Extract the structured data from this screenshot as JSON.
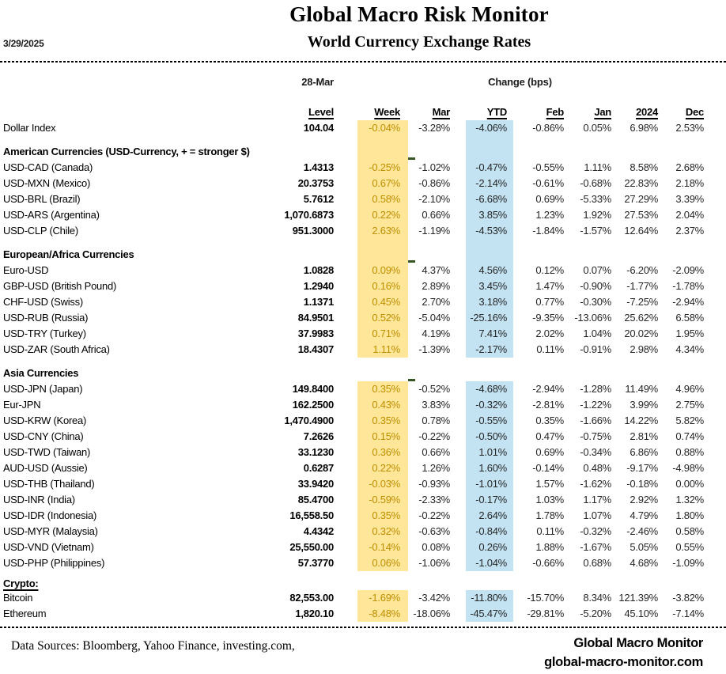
{
  "header": {
    "date": "3/29/2025",
    "title": "Global Macro Risk Monitor",
    "subtitle": "World Currency Exchange Rates"
  },
  "table": {
    "group_labels": {
      "level_group": "28-Mar",
      "change_group": "Change (bps)"
    },
    "columns": [
      "Level",
      "Week",
      "Mar",
      "YTD",
      "Feb",
      "Jan",
      "2024",
      "Dec"
    ],
    "rows": [
      {
        "t": "d",
        "label": "Dollar Index",
        "level": "104.04",
        "week": "-0.04%",
        "mar": "-3.28%",
        "ytd": "-4.06%",
        "feb": "-0.86%",
        "jan": "0.05%",
        "y2024": "6.98%",
        "dec": "2.53%",
        "hl": true
      },
      {
        "t": "sp",
        "h": 10,
        "hl": true
      },
      {
        "t": "s",
        "label": "American Currencies (USD-Currency, + = stronger $)",
        "hl": true
      },
      {
        "t": "d",
        "label": "USD-CAD (Canada)",
        "level": "1.4313",
        "week": "-0.25%",
        "mar": "-1.02%",
        "ytd": "-0.47%",
        "feb": "-0.55%",
        "jan": "1.11%",
        "y2024": "8.58%",
        "dec": "2.68%",
        "hl": true,
        "dash": true
      },
      {
        "t": "d",
        "label": "USD-MXN  (Mexico)",
        "level": "20.3753",
        "week": "0.67%",
        "mar": "-0.86%",
        "ytd": "-2.14%",
        "feb": "-0.61%",
        "jan": "-0.68%",
        "y2024": "22.83%",
        "dec": "2.18%",
        "hl": true
      },
      {
        "t": "d",
        "label": "USD-BRL (Brazil)",
        "level": "5.7612",
        "week": "0.58%",
        "mar": "-2.10%",
        "ytd": "-6.68%",
        "feb": "0.69%",
        "jan": "-5.33%",
        "y2024": "27.29%",
        "dec": "3.39%",
        "hl": true
      },
      {
        "t": "d",
        "label": "USD-ARS (Argentina)",
        "level": "1,070.6873",
        "week": "0.22%",
        "mar": "0.66%",
        "ytd": "3.85%",
        "feb": "1.23%",
        "jan": "1.92%",
        "y2024": "27.53%",
        "dec": "2.04%",
        "hl": true
      },
      {
        "t": "d",
        "label": "USD-CLP (Chile)",
        "level": "951.3000",
        "week": "2.63%",
        "mar": "-1.19%",
        "ytd": "-4.53%",
        "feb": "-1.84%",
        "jan": "-1.57%",
        "y2024": "12.64%",
        "dec": "2.37%",
        "hl": true
      },
      {
        "t": "sp",
        "h": 10,
        "hl": true
      },
      {
        "t": "s",
        "label": "European/Africa Currencies",
        "hl": true
      },
      {
        "t": "d",
        "label": "Euro-USD",
        "level": "1.0828",
        "week": "0.09%",
        "mar": "4.37%",
        "ytd": "4.56%",
        "feb": "0.12%",
        "jan": "0.07%",
        "y2024": "-6.20%",
        "dec": "-2.09%",
        "hl": true,
        "dash": true
      },
      {
        "t": "d",
        "label": "GBP-USD (British Pound)",
        "level": "1.2940",
        "week": "0.16%",
        "mar": "2.89%",
        "ytd": "3.45%",
        "feb": "1.47%",
        "jan": "-0.90%",
        "y2024": "-1.77%",
        "dec": "-1.78%",
        "hl": true
      },
      {
        "t": "d",
        "label": "CHF-USD (Swiss)",
        "level": "1.1371",
        "week": "0.45%",
        "mar": "2.70%",
        "ytd": "3.18%",
        "feb": "0.77%",
        "jan": "-0.30%",
        "y2024": "-7.25%",
        "dec": "-2.94%",
        "hl": true
      },
      {
        "t": "d",
        "label": "USD-RUB (Russia)",
        "level": "84.9501",
        "week": "0.52%",
        "mar": "-5.04%",
        "ytd": "-25.16%",
        "feb": "-9.35%",
        "jan": "-13.06%",
        "y2024": "25.62%",
        "dec": "6.58%",
        "hl": true
      },
      {
        "t": "d",
        "label": "USD-TRY (Turkey)",
        "level": "37.9983",
        "week": "0.71%",
        "mar": "4.19%",
        "ytd": "7.41%",
        "feb": "2.02%",
        "jan": "1.04%",
        "y2024": "20.02%",
        "dec": "1.95%",
        "hl": true
      },
      {
        "t": "d",
        "label": "USD-ZAR (South Africa)",
        "level": "18.4307",
        "week": "1.11%",
        "mar": "-1.39%",
        "ytd": "-2.17%",
        "feb": "0.11%",
        "jan": "-0.91%",
        "y2024": "2.98%",
        "dec": "4.34%",
        "hl": true
      },
      {
        "t": "sp",
        "h": 10,
        "hl": false
      },
      {
        "t": "s",
        "label": "Asia Currencies",
        "hl": false
      },
      {
        "t": "d",
        "label": "USD-JPN (Japan)",
        "level": "149.8400",
        "week": "0.35%",
        "mar": "-0.52%",
        "ytd": "-4.68%",
        "feb": "-2.94%",
        "jan": "-1.28%",
        "y2024": "11.49%",
        "dec": "4.96%",
        "hl": true,
        "dash": true
      },
      {
        "t": "d",
        "label": "Eur-JPN",
        "level": "162.2500",
        "week": "0.43%",
        "mar": "3.83%",
        "ytd": "-0.32%",
        "feb": "-2.81%",
        "jan": "-1.22%",
        "y2024": "3.99%",
        "dec": "2.75%",
        "hl": true
      },
      {
        "t": "d",
        "label": "USD-KRW (Korea)",
        "level": "1,470.4900",
        "week": "0.35%",
        "mar": "0.78%",
        "ytd": "-0.55%",
        "feb": "0.35%",
        "jan": "-1.66%",
        "y2024": "14.22%",
        "dec": "5.82%",
        "hl": true
      },
      {
        "t": "d",
        "label": "USD-CNY (China)",
        "level": "7.2626",
        "week": "0.15%",
        "mar": "-0.22%",
        "ytd": "-0.50%",
        "feb": "0.47%",
        "jan": "-0.75%",
        "y2024": "2.81%",
        "dec": "0.74%",
        "hl": true
      },
      {
        "t": "d",
        "label": "USD-TWD (Taiwan)",
        "level": "33.1230",
        "week": "0.36%",
        "mar": "0.66%",
        "ytd": "1.01%",
        "feb": "0.69%",
        "jan": "-0.34%",
        "y2024": "6.86%",
        "dec": "0.88%",
        "hl": true
      },
      {
        "t": "d",
        "label": "AUD-USD (Aussie)",
        "level": "0.6287",
        "week": "0.22%",
        "mar": "1.26%",
        "ytd": "1.60%",
        "feb": "-0.14%",
        "jan": "0.48%",
        "y2024": "-9.17%",
        "dec": "-4.98%",
        "hl": true
      },
      {
        "t": "d",
        "label": "USD-THB  (Thailand)",
        "level": "33.9420",
        "week": "-0.03%",
        "mar": "-0.93%",
        "ytd": "-1.01%",
        "feb": "1.57%",
        "jan": "-1.62%",
        "y2024": "-0.18%",
        "dec": "0.00%",
        "hl": true
      },
      {
        "t": "d",
        "label": "USD-INR (India)",
        "level": "85.4700",
        "week": "-0.59%",
        "mar": "-2.33%",
        "ytd": "-0.17%",
        "feb": "1.03%",
        "jan": "1.17%",
        "y2024": "2.92%",
        "dec": "1.32%",
        "hl": true
      },
      {
        "t": "d",
        "label": "USD-IDR (Indonesia)",
        "level": "16,558.50",
        "week": "0.35%",
        "mar": "-0.22%",
        "ytd": "2.64%",
        "feb": "1.78%",
        "jan": "1.07%",
        "y2024": "4.79%",
        "dec": "1.80%",
        "hl": true
      },
      {
        "t": "d",
        "label": "USD-MYR (Malaysia)",
        "level": "4.4342",
        "week": "0.32%",
        "mar": "-0.63%",
        "ytd": "-0.84%",
        "feb": "0.11%",
        "jan": "-0.32%",
        "y2024": "-2.46%",
        "dec": "0.58%",
        "hl": true
      },
      {
        "t": "d",
        "label": "USD-VND (Vietnam)",
        "level": "25,550.00",
        "week": "-0.14%",
        "mar": "0.08%",
        "ytd": "0.26%",
        "feb": "1.88%",
        "jan": "-1.67%",
        "y2024": "5.05%",
        "dec": "0.55%",
        "hl": true
      },
      {
        "t": "d",
        "label": "USD-PHP (Philippines)",
        "level": "57.3770",
        "week": "0.06%",
        "mar": "-1.06%",
        "ytd": "-1.04%",
        "feb": "-0.66%",
        "jan": "0.68%",
        "y2024": "4.68%",
        "dec": "-1.09%",
        "hl": true
      },
      {
        "t": "sp",
        "h": 8,
        "hl": false
      },
      {
        "t": "s",
        "label": "Crypto:",
        "hl": false,
        "u": true,
        "h": 16
      },
      {
        "t": "d",
        "label": "Bitcoin",
        "level": "82,553.00",
        "week": "-1.69%",
        "mar": "-3.42%",
        "ytd": "-11.80%",
        "feb": "-15.70%",
        "jan": "8.34%",
        "y2024": "121.39%",
        "dec": "-3.82%",
        "hl": true
      },
      {
        "t": "d",
        "label": "Ethereum",
        "level": "1,820.10",
        "week": "-8.48%",
        "mar": "-18.06%",
        "ytd": "-45.47%",
        "feb": "-29.81%",
        "jan": "-5.20%",
        "y2024": "45.10%",
        "dec": "-7.14%",
        "hl": true
      }
    ]
  },
  "footer": {
    "data_sources": "Data Sources:  Bloomberg,  Yahoo Finance, investing.com,",
    "brand_name": "Global Macro Monitor",
    "brand_site": "global-macro-monitor.com"
  },
  "colors": {
    "week_highlight_bg": "#FFE699",
    "week_text": "#BF8F00",
    "ytd_highlight_bg": "#C3E3F3",
    "section_marker_green": "#375623"
  }
}
